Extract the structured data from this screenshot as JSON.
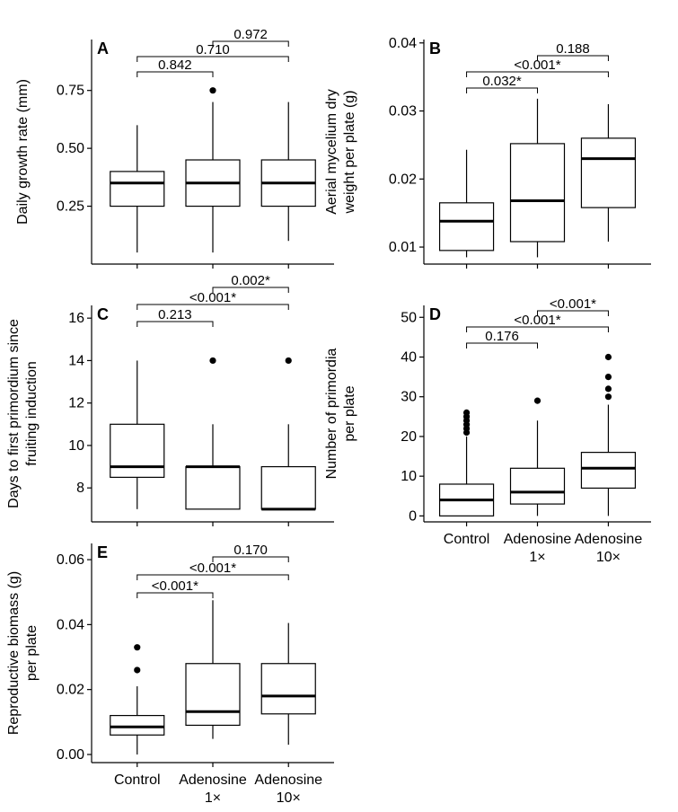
{
  "chart_data": [
    {
      "panel": "A",
      "type": "box",
      "categories": [
        "Control",
        "Adenosine\n1×",
        "Adenosine\n10×"
      ],
      "ylabel": [
        "Daily growth rate (mm)"
      ],
      "ylim": [
        0.0,
        0.97
      ],
      "yticks": [
        0.25,
        0.5,
        0.75
      ],
      "ytick_labels": [
        "0.25",
        "0.50",
        "0.75"
      ],
      "show_x_labels": false,
      "boxes": [
        {
          "min": 0.05,
          "q1": 0.25,
          "median": 0.35,
          "q3": 0.4,
          "max": 0.6,
          "outliers": []
        },
        {
          "min": 0.05,
          "q1": 0.25,
          "median": 0.35,
          "q3": 0.45,
          "max": 0.7,
          "outliers": [
            0.75
          ]
        },
        {
          "min": 0.1,
          "q1": 0.25,
          "median": 0.35,
          "q3": 0.45,
          "max": 0.7,
          "outliers": []
        }
      ],
      "comparisons": [
        {
          "from": 0,
          "to": 1,
          "label": "0.842"
        },
        {
          "from": 0,
          "to": 2,
          "label": "0.710"
        },
        {
          "from": 1,
          "to": 2,
          "label": "0.972"
        }
      ]
    },
    {
      "panel": "B",
      "type": "box",
      "categories": [
        "Control",
        "Adenosine\n1×",
        "Adenosine\n10×"
      ],
      "ylabel": [
        "Aerial mycelium dry",
        "weight per plate (g)"
      ],
      "ylim": [
        0.0075,
        0.0405
      ],
      "yticks": [
        0.01,
        0.02,
        0.03,
        0.04
      ],
      "ytick_labels": [
        "0.01",
        "0.02",
        "0.03",
        "0.04"
      ],
      "show_x_labels": false,
      "boxes": [
        {
          "min": 0.0085,
          "q1": 0.0095,
          "median": 0.0138,
          "q3": 0.0165,
          "max": 0.0243,
          "outliers": []
        },
        {
          "min": 0.0085,
          "q1": 0.0108,
          "median": 0.0168,
          "q3": 0.0252,
          "max": 0.0318,
          "outliers": []
        },
        {
          "min": 0.0108,
          "q1": 0.0158,
          "median": 0.023,
          "q3": 0.026,
          "max": 0.031,
          "outliers": []
        }
      ],
      "comparisons": [
        {
          "from": 0,
          "to": 1,
          "label": "0.032*"
        },
        {
          "from": 0,
          "to": 2,
          "label": "<0.001*"
        },
        {
          "from": 1,
          "to": 2,
          "label": "0.188"
        }
      ]
    },
    {
      "panel": "C",
      "type": "box",
      "categories": [
        "Control",
        "Adenosine\n1×",
        "Adenosine\n10×"
      ],
      "ylabel": [
        "Days to first primordium since",
        "fruiting induction"
      ],
      "ylim": [
        6.4,
        16.6
      ],
      "yticks": [
        8,
        10,
        12,
        14,
        16
      ],
      "ytick_labels": [
        "8",
        "10",
        "12",
        "14",
        "16"
      ],
      "show_x_labels": false,
      "boxes": [
        {
          "min": 7,
          "q1": 8.5,
          "median": 9,
          "q3": 11,
          "max": 14,
          "outliers": []
        },
        {
          "min": 7,
          "q1": 7,
          "median": 9,
          "q3": 9,
          "max": 11,
          "outliers": [
            14
          ]
        },
        {
          "min": 7,
          "q1": 7,
          "median": 7,
          "q3": 9,
          "max": 11,
          "outliers": [
            14
          ]
        }
      ],
      "comparisons": [
        {
          "from": 0,
          "to": 1,
          "label": "0.213"
        },
        {
          "from": 0,
          "to": 2,
          "label": "<0.001*"
        },
        {
          "from": 1,
          "to": 2,
          "label": "0.002*"
        }
      ]
    },
    {
      "panel": "D",
      "type": "box",
      "categories": [
        "Control",
        "Adenosine\n1×",
        "Adenosine\n10×"
      ],
      "ylabel": [
        "Number of primordia",
        "per plate"
      ],
      "ylim": [
        -1.5,
        53
      ],
      "yticks": [
        0,
        10,
        20,
        30,
        40,
        50
      ],
      "ytick_labels": [
        "0",
        "10",
        "20",
        "30",
        "40",
        "50"
      ],
      "show_x_labels": true,
      "boxes": [
        {
          "min": 0,
          "q1": 0,
          "median": 4,
          "q3": 8,
          "max": 20,
          "outliers": [
            21,
            22,
            23,
            24,
            25,
            26
          ]
        },
        {
          "min": 0,
          "q1": 3,
          "median": 6,
          "q3": 12,
          "max": 24,
          "outliers": [
            29
          ]
        },
        {
          "min": 0,
          "q1": 7,
          "median": 12,
          "q3": 16,
          "max": 28,
          "outliers": [
            30,
            32,
            35,
            40
          ]
        }
      ],
      "comparisons": [
        {
          "from": 0,
          "to": 1,
          "label": "0.176"
        },
        {
          "from": 0,
          "to": 2,
          "label": "<0.001*"
        },
        {
          "from": 1,
          "to": 2,
          "label": "<0.001*"
        }
      ]
    },
    {
      "panel": "E",
      "type": "box",
      "categories": [
        "Control",
        "Adenosine\n1×",
        "Adenosine\n10×"
      ],
      "ylabel": [
        "Reproductive biomass (g)",
        "per plate"
      ],
      "ylim": [
        -0.0025,
        0.065
      ],
      "yticks": [
        0.0,
        0.02,
        0.04,
        0.06
      ],
      "ytick_labels": [
        "0.00",
        "0.02",
        "0.04",
        "0.06"
      ],
      "show_x_labels": true,
      "boxes": [
        {
          "min": 0.0,
          "q1": 0.006,
          "median": 0.0085,
          "q3": 0.012,
          "max": 0.021,
          "outliers": [
            0.026,
            0.033
          ]
        },
        {
          "min": 0.0048,
          "q1": 0.009,
          "median": 0.0132,
          "q3": 0.028,
          "max": 0.0475,
          "outliers": []
        },
        {
          "min": 0.003,
          "q1": 0.0125,
          "median": 0.018,
          "q3": 0.028,
          "max": 0.0405,
          "outliers": []
        }
      ],
      "comparisons": [
        {
          "from": 0,
          "to": 1,
          "label": "<0.001*"
        },
        {
          "from": 0,
          "to": 2,
          "label": "<0.001*"
        },
        {
          "from": 1,
          "to": 2,
          "label": "0.170"
        }
      ]
    }
  ]
}
